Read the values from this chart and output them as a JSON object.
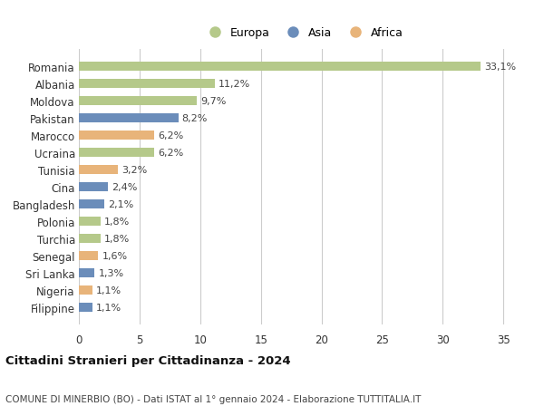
{
  "categories": [
    "Filippine",
    "Nigeria",
    "Sri Lanka",
    "Senegal",
    "Turchia",
    "Polonia",
    "Bangladesh",
    "Cina",
    "Tunisia",
    "Ucraina",
    "Marocco",
    "Pakistan",
    "Moldova",
    "Albania",
    "Romania"
  ],
  "values": [
    1.1,
    1.1,
    1.3,
    1.6,
    1.8,
    1.8,
    2.1,
    2.4,
    3.2,
    6.2,
    6.2,
    8.2,
    9.7,
    11.2,
    33.1
  ],
  "labels": [
    "1,1%",
    "1,1%",
    "1,3%",
    "1,6%",
    "1,8%",
    "1,8%",
    "2,1%",
    "2,4%",
    "3,2%",
    "6,2%",
    "6,2%",
    "8,2%",
    "9,7%",
    "11,2%",
    "33,1%"
  ],
  "continents": [
    "Asia",
    "Africa",
    "Asia",
    "Africa",
    "Europa",
    "Europa",
    "Asia",
    "Asia",
    "Africa",
    "Europa",
    "Africa",
    "Asia",
    "Europa",
    "Europa",
    "Europa"
  ],
  "colors": {
    "Europa": "#b5c98a",
    "Asia": "#6b8dba",
    "Africa": "#e8b47a"
  },
  "legend_order": [
    "Europa",
    "Asia",
    "Africa"
  ],
  "xlim": [
    0,
    37
  ],
  "xticks": [
    0,
    5,
    10,
    15,
    20,
    25,
    30,
    35
  ],
  "title": "Cittadini Stranieri per Cittadinanza - 2024",
  "subtitle": "COMUNE DI MINERBIO (BO) - Dati ISTAT al 1° gennaio 2024 - Elaborazione TUTTITALIA.IT",
  "background_color": "#ffffff",
  "grid_color": "#cccccc",
  "bar_height": 0.55,
  "figsize": [
    6.0,
    4.6
  ],
  "dpi": 100
}
